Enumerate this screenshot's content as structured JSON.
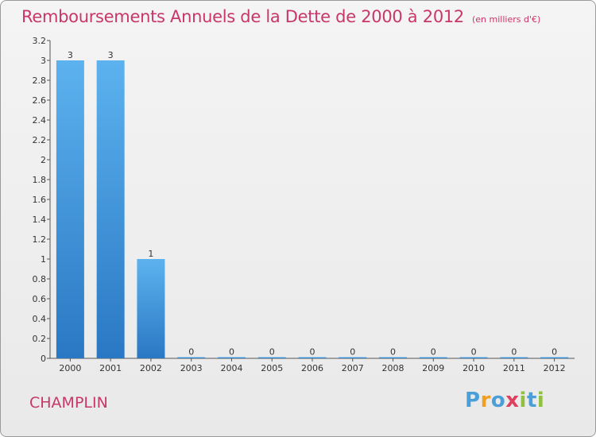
{
  "chart_data": {
    "type": "bar",
    "title": "Remboursements Annuels de la Dette de 2000 à 2012",
    "subtitle": "(en milliers d'€)",
    "categories": [
      "2000",
      "2001",
      "2002",
      "2003",
      "2004",
      "2005",
      "2006",
      "2007",
      "2008",
      "2009",
      "2010",
      "2011",
      "2012"
    ],
    "values": [
      3,
      3,
      1,
      0,
      0,
      0,
      0,
      0,
      0,
      0,
      0,
      0,
      0
    ],
    "value_labels": [
      "3",
      "3",
      "1",
      "0",
      "0",
      "0",
      "0",
      "0",
      "0",
      "0",
      "0",
      "0",
      "0"
    ],
    "ylim": [
      0,
      3.2
    ],
    "yticks": [
      {
        "value": 0,
        "label": "0"
      },
      {
        "value": 0.2,
        "label": "0.2"
      },
      {
        "value": 0.4,
        "label": "0.4"
      },
      {
        "value": 0.6,
        "label": "0.6"
      },
      {
        "value": 0.8,
        "label": "0.8"
      },
      {
        "value": 1,
        "label": "1"
      },
      {
        "value": 1.2,
        "label": "1.2"
      },
      {
        "value": 1.4,
        "label": "1.4"
      },
      {
        "value": 1.6,
        "label": "1.6"
      },
      {
        "value": 1.8,
        "label": "1.8"
      },
      {
        "value": 2,
        "label": "2"
      },
      {
        "value": 2.2,
        "label": "2.2"
      },
      {
        "value": 2.4,
        "label": "2.4"
      },
      {
        "value": 2.6,
        "label": "2.6"
      },
      {
        "value": 2.8,
        "label": "2.8"
      },
      {
        "value": 3,
        "label": "3"
      },
      {
        "value": 3.2,
        "label": "3.2"
      }
    ],
    "xlabel": "",
    "ylabel": "",
    "grid": false,
    "bar_color": "#3d8fd6"
  },
  "commune": "CHAMPLIN",
  "brand": {
    "letters": [
      "P",
      "r",
      "o",
      "x",
      "i",
      "t",
      "i"
    ],
    "colors": [
      "#4a9fd8",
      "#f0a020",
      "#4a9fd8",
      "#e04060",
      "#90c040",
      "#4a9fd8",
      "#90c040"
    ]
  }
}
